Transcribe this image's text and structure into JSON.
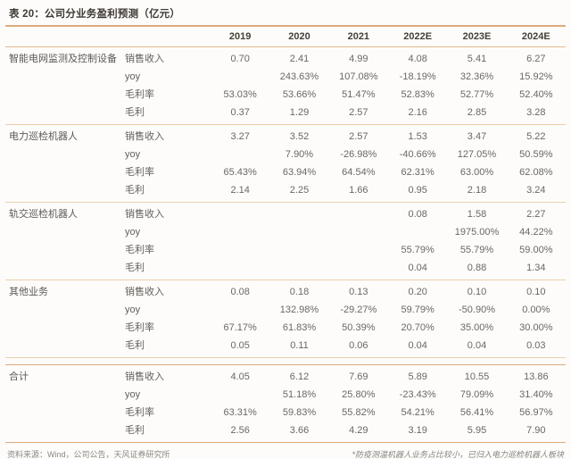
{
  "title": "表 20：公司分业务盈利预测（亿元）",
  "table": {
    "year_columns": [
      "2019",
      "2020",
      "2021",
      "2022E",
      "2023E",
      "2024E"
    ],
    "groups": [
      {
        "name": "智能电网监测及控制设备",
        "rows": [
          {
            "label": "销售收入",
            "values": [
              "0.70",
              "2.41",
              "4.99",
              "4.08",
              "5.41",
              "6.27"
            ]
          },
          {
            "label": "yoy",
            "values": [
              "",
              "243.63%",
              "107.08%",
              "-18.19%",
              "32.36%",
              "15.92%"
            ]
          },
          {
            "label": "毛利率",
            "values": [
              "53.03%",
              "53.66%",
              "51.47%",
              "52.83%",
              "52.77%",
              "52.40%"
            ]
          },
          {
            "label": "毛利",
            "values": [
              "0.37",
              "1.29",
              "2.57",
              "2.16",
              "2.85",
              "3.28"
            ]
          }
        ]
      },
      {
        "name": "电力巡检机器人",
        "rows": [
          {
            "label": "销售收入",
            "values": [
              "3.27",
              "3.52",
              "2.57",
              "1.53",
              "3.47",
              "5.22"
            ]
          },
          {
            "label": "yoy",
            "values": [
              "",
              "7.90%",
              "-26.98%",
              "-40.66%",
              "127.05%",
              "50.59%"
            ]
          },
          {
            "label": "毛利率",
            "values": [
              "65.43%",
              "63.94%",
              "64.54%",
              "62.31%",
              "63.00%",
              "62.08%"
            ]
          },
          {
            "label": "毛利",
            "values": [
              "2.14",
              "2.25",
              "1.66",
              "0.95",
              "2.18",
              "3.24"
            ]
          }
        ]
      },
      {
        "name": "轨交巡检机器人",
        "rows": [
          {
            "label": "销售收入",
            "values": [
              "",
              "",
              "",
              "0.08",
              "1.58",
              "2.27"
            ]
          },
          {
            "label": "yoy",
            "values": [
              "",
              "",
              "",
              "",
              "1975.00%",
              "44.22%"
            ]
          },
          {
            "label": "毛利率",
            "values": [
              "",
              "",
              "",
              "55.79%",
              "55.79%",
              "59.00%"
            ]
          },
          {
            "label": "毛利",
            "values": [
              "",
              "",
              "",
              "0.04",
              "0.88",
              "1.34"
            ]
          }
        ]
      },
      {
        "name": "其他业务",
        "rows": [
          {
            "label": "销售收入",
            "values": [
              "0.08",
              "0.18",
              "0.13",
              "0.20",
              "0.10",
              "0.10"
            ]
          },
          {
            "label": "yoy",
            "values": [
              "",
              "132.98%",
              "-29.27%",
              "59.79%",
              "-50.90%",
              "0.00%"
            ]
          },
          {
            "label": "毛利率",
            "values": [
              "67.17%",
              "61.83%",
              "50.39%",
              "20.70%",
              "35.00%",
              "30.00%"
            ]
          },
          {
            "label": "毛利",
            "values": [
              "0.05",
              "0.11",
              "0.06",
              "0.04",
              "0.04",
              "0.03"
            ]
          }
        ]
      },
      {
        "name": "合计",
        "is_total": true,
        "rows": [
          {
            "label": "销售收入",
            "values": [
              "4.05",
              "6.12",
              "7.69",
              "5.89",
              "10.55",
              "13.86"
            ]
          },
          {
            "label": "yoy",
            "values": [
              "",
              "51.18%",
              "25.80%",
              "-23.43%",
              "79.09%",
              "31.40%"
            ]
          },
          {
            "label": "毛利率",
            "values": [
              "63.31%",
              "59.83%",
              "55.82%",
              "54.21%",
              "56.41%",
              "56.97%"
            ]
          },
          {
            "label": "毛利",
            "values": [
              "2.56",
              "3.66",
              "4.29",
              "3.19",
              "5.95",
              "7.90"
            ]
          }
        ]
      }
    ]
  },
  "footer": {
    "source": "资料来源：Wind，公司公告，天风证券研究所",
    "note": "*防疫测温机器人业务占比较小，已归入电力巡检机器人板块"
  },
  "colors": {
    "accent_line": "#ddab7e",
    "light_line": "#ecceab",
    "title_text": "#3f3a35",
    "header_text": "#45403a",
    "body_text": "#6b6763",
    "footer_text": "#8b8782",
    "background": "#fdfcfa"
  }
}
